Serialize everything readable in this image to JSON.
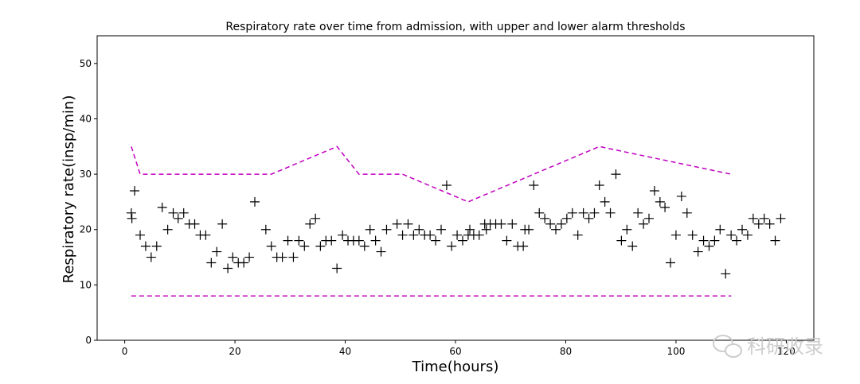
{
  "chart_data": {
    "type": "scatter",
    "title": "Respiratory rate over time from admission, with upper and lower alarm thresholds",
    "xlabel": "Time(hours)",
    "ylabel": "Respiratory rate(insp/min)",
    "xlim": [
      -5,
      125
    ],
    "ylim": [
      0,
      55
    ],
    "xticks": [
      0,
      20,
      40,
      60,
      80,
      100,
      120
    ],
    "xtick_labels": [
      "0",
      "20",
      "40",
      "60",
      "80",
      "100",
      "120"
    ],
    "yticks": [
      0,
      10,
      20,
      30,
      40,
      50
    ],
    "ytick_labels": [
      "0",
      "10",
      "20",
      "30",
      "40",
      "50"
    ],
    "grid": false,
    "legend": "none",
    "marker": "+",
    "marker_color": "#000000",
    "threshold_color": "#c000c0",
    "series": [
      {
        "type": "scatter",
        "points": [
          [
            1.2,
            23
          ],
          [
            1.3,
            22
          ],
          [
            1.8,
            27
          ],
          [
            2.8,
            19
          ],
          [
            3.8,
            17
          ],
          [
            4.8,
            15
          ],
          [
            5.8,
            17
          ],
          [
            6.8,
            24
          ],
          [
            7.8,
            20
          ],
          [
            8.8,
            23
          ],
          [
            9.7,
            22
          ],
          [
            10.7,
            23
          ],
          [
            11.7,
            21
          ],
          [
            12.7,
            21
          ],
          [
            13.7,
            19
          ],
          [
            14.7,
            19
          ],
          [
            15.7,
            14
          ],
          [
            16.7,
            16
          ],
          [
            17.7,
            21
          ],
          [
            18.7,
            13
          ],
          [
            19.6,
            15
          ],
          [
            20.6,
            14
          ],
          [
            21.6,
            14
          ],
          [
            22.6,
            15
          ],
          [
            23.6,
            25
          ],
          [
            25.6,
            20
          ],
          [
            26.6,
            17
          ],
          [
            27.6,
            15
          ],
          [
            28.6,
            15
          ],
          [
            29.6,
            18
          ],
          [
            30.6,
            15
          ],
          [
            31.6,
            18
          ],
          [
            32.6,
            17
          ],
          [
            33.6,
            21
          ],
          [
            34.6,
            22
          ],
          [
            35.5,
            17
          ],
          [
            36.5,
            18
          ],
          [
            37.5,
            18
          ],
          [
            38.5,
            13
          ],
          [
            39.5,
            19
          ],
          [
            40.5,
            18
          ],
          [
            41.5,
            18
          ],
          [
            42.5,
            18
          ],
          [
            43.5,
            17
          ],
          [
            44.5,
            20
          ],
          [
            45.5,
            18
          ],
          [
            46.5,
            16
          ],
          [
            47.5,
            20
          ],
          [
            49.4,
            21
          ],
          [
            50.4,
            19
          ],
          [
            51.4,
            21
          ],
          [
            52.4,
            19
          ],
          [
            53.4,
            20
          ],
          [
            54.4,
            19
          ],
          [
            55.4,
            19
          ],
          [
            56.4,
            18
          ],
          [
            57.4,
            20
          ],
          [
            58.4,
            28
          ],
          [
            59.3,
            17
          ],
          [
            60.3,
            19
          ],
          [
            61.3,
            18
          ],
          [
            62.3,
            19
          ],
          [
            62.6,
            20
          ],
          [
            63.3,
            19
          ],
          [
            64.3,
            19
          ],
          [
            65.3,
            21
          ],
          [
            65.6,
            20
          ],
          [
            66.3,
            21
          ],
          [
            67.3,
            21
          ],
          [
            68.3,
            21
          ],
          [
            69.3,
            18
          ],
          [
            70.3,
            21
          ],
          [
            71.3,
            17
          ],
          [
            72.3,
            17
          ],
          [
            72.6,
            20
          ],
          [
            73.3,
            20
          ],
          [
            74.2,
            28
          ],
          [
            75.2,
            23
          ],
          [
            76.2,
            22
          ],
          [
            77.2,
            21
          ],
          [
            78.2,
            20
          ],
          [
            79.2,
            21
          ],
          [
            80.2,
            22
          ],
          [
            81.2,
            23
          ],
          [
            82.2,
            19
          ],
          [
            83.2,
            23
          ],
          [
            84.2,
            22
          ],
          [
            85.2,
            23
          ],
          [
            86.1,
            28
          ],
          [
            87.1,
            25
          ],
          [
            88.1,
            23
          ],
          [
            89.1,
            30
          ],
          [
            90.1,
            18
          ],
          [
            91.1,
            20
          ],
          [
            92.1,
            17
          ],
          [
            93.1,
            23
          ],
          [
            94.1,
            21
          ],
          [
            95.1,
            22
          ],
          [
            96.1,
            27
          ],
          [
            97.1,
            25
          ],
          [
            98.0,
            24
          ],
          [
            99.0,
            14
          ],
          [
            100.0,
            19
          ],
          [
            101.0,
            26
          ],
          [
            102.0,
            23
          ],
          [
            103.0,
            19
          ],
          [
            104.0,
            16
          ],
          [
            105.0,
            18
          ],
          [
            106.0,
            17
          ],
          [
            107.0,
            18
          ],
          [
            108.0,
            20
          ],
          [
            109.0,
            12
          ],
          [
            110.0,
            19
          ],
          [
            111.0,
            18
          ],
          [
            112.0,
            20
          ],
          [
            113.0,
            19
          ],
          [
            114.0,
            22
          ],
          [
            115.0,
            21
          ],
          [
            116.0,
            22
          ],
          [
            117.0,
            21
          ],
          [
            118.0,
            18
          ],
          [
            119.0,
            22
          ]
        ]
      },
      {
        "type": "line",
        "style": "dashed",
        "points": [
          [
            1.2,
            35
          ],
          [
            2.8,
            30
          ],
          [
            26.6,
            30
          ],
          [
            38.5,
            35
          ],
          [
            42.5,
            30
          ],
          [
            50.4,
            30
          ],
          [
            62.3,
            25
          ],
          [
            86.1,
            35
          ],
          [
            110.0,
            30
          ]
        ]
      },
      {
        "type": "line",
        "style": "dashed",
        "points": [
          [
            1.2,
            8
          ],
          [
            110.0,
            8
          ]
        ]
      }
    ]
  },
  "watermark": {
    "text": "科研收录",
    "icon": "wechat-icon"
  }
}
